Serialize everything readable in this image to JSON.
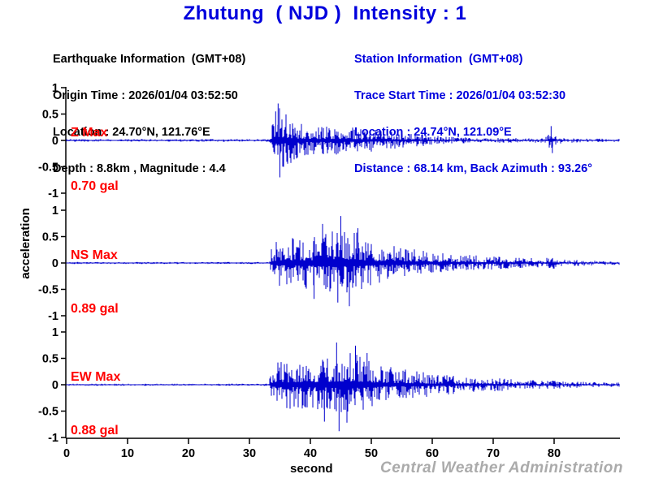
{
  "title": {
    "text": "Zhutung  ( NJD )  Intensity : 1"
  },
  "earthquake_info": {
    "heading": "Earthquake Information  (GMT+08)",
    "origin_time": "Origin Time : 2026/01/04 03:52:50",
    "location": "Location : 24.70°N, 121.76°E",
    "depth_magnitude": "Depth : 8.8km , Magnitude : 4.4"
  },
  "station_info": {
    "heading": "Station Information  (GMT+08)",
    "trace_start_time": "Trace Start Time : 2026/01/04 03:52:30",
    "location": "Location : 24.74°N, 121.09°E",
    "distance_azimuth": "Distance : 68.14 km, Back Azimuth : 93.26°"
  },
  "footer": {
    "watermark": "Central Weather Administration"
  },
  "colors": {
    "accent_blue": "#0000dd",
    "trace_blue": "#0000cd",
    "label_red": "#ff0000",
    "watermark_gray": "#ababab",
    "text_black": "#000000"
  },
  "chart_data": {
    "type": "line",
    "description": "Three-component strong-motion seismogram (acceleration vs time)",
    "xlabel": "second",
    "ylabel": "acceleration",
    "amplitude_unit": "gal",
    "x_axis": {
      "ticks": [
        0,
        10,
        20,
        30,
        40,
        50,
        60,
        70,
        80
      ],
      "range": [
        0,
        90.7
      ]
    },
    "y_axis": {
      "ticks": [
        1,
        0.5,
        0,
        -0.5,
        -1
      ],
      "range": [
        -1,
        1
      ]
    },
    "event_onset_s": 33.5,
    "traces": [
      {
        "id": "Z",
        "max_title": "Z Max",
        "max_value": "0.70 gal",
        "max_gal": 0.7,
        "envelope": [
          [
            0,
            0.025
          ],
          [
            33.2,
            0.025
          ],
          [
            33.6,
            0.3
          ],
          [
            34.2,
            0.62
          ],
          [
            35.2,
            0.62
          ],
          [
            36.5,
            0.45
          ],
          [
            38,
            0.34
          ],
          [
            40,
            0.3
          ],
          [
            42,
            0.26
          ],
          [
            45,
            0.27
          ],
          [
            47,
            0.24
          ],
          [
            50,
            0.22
          ],
          [
            53,
            0.17
          ],
          [
            56,
            0.14
          ],
          [
            59,
            0.11
          ],
          [
            62,
            0.08
          ],
          [
            65,
            0.06
          ],
          [
            69,
            0.05
          ],
          [
            73,
            0.045
          ],
          [
            78,
            0.04
          ],
          [
            79,
            0.09
          ],
          [
            79.5,
            0.26
          ],
          [
            80.3,
            0.07
          ],
          [
            82,
            0.045
          ],
          [
            86,
            0.035
          ],
          [
            90.7,
            0.03
          ]
        ],
        "peaks": [
          [
            34.7,
            0.7
          ],
          [
            35.0,
            -0.7
          ],
          [
            34.3,
            0.55
          ],
          [
            35.6,
            -0.5
          ],
          [
            79.5,
            0.27
          ],
          [
            79.7,
            -0.24
          ]
        ]
      },
      {
        "id": "NS",
        "max_title": "NS Max",
        "max_value": "0.89 gal",
        "max_gal": 0.89,
        "envelope": [
          [
            0,
            0.02
          ],
          [
            33.2,
            0.02
          ],
          [
            33.6,
            0.3
          ],
          [
            34.5,
            0.42
          ],
          [
            36,
            0.46
          ],
          [
            38,
            0.5
          ],
          [
            40,
            0.52
          ],
          [
            42,
            0.58
          ],
          [
            44,
            0.62
          ],
          [
            45,
            0.68
          ],
          [
            46,
            0.64
          ],
          [
            47.5,
            0.6
          ],
          [
            49,
            0.5
          ],
          [
            51,
            0.38
          ],
          [
            53,
            0.33
          ],
          [
            55,
            0.3
          ],
          [
            57,
            0.26
          ],
          [
            59,
            0.22
          ],
          [
            61,
            0.19
          ],
          [
            63,
            0.17
          ],
          [
            66,
            0.15
          ],
          [
            69,
            0.13
          ],
          [
            72,
            0.11
          ],
          [
            75,
            0.1
          ],
          [
            78,
            0.08
          ],
          [
            79.5,
            0.13
          ],
          [
            81,
            0.07
          ],
          [
            84,
            0.055
          ],
          [
            87,
            0.045
          ],
          [
            90.7,
            0.035
          ]
        ],
        "peaks": [
          [
            45.0,
            0.89
          ],
          [
            46.4,
            -0.82
          ],
          [
            42.0,
            0.74
          ],
          [
            44.5,
            -0.75
          ],
          [
            40.6,
            -0.68
          ],
          [
            47.8,
            0.66
          ]
        ]
      },
      {
        "id": "EW",
        "max_title": "EW Max",
        "max_value": "0.88 gal",
        "max_gal": 0.88,
        "envelope": [
          [
            0,
            0.02
          ],
          [
            33.2,
            0.02
          ],
          [
            33.6,
            0.32
          ],
          [
            34.5,
            0.42
          ],
          [
            36,
            0.44
          ],
          [
            38,
            0.48
          ],
          [
            40,
            0.46
          ],
          [
            42,
            0.52
          ],
          [
            43.5,
            0.58
          ],
          [
            45,
            0.62
          ],
          [
            46.5,
            0.6
          ],
          [
            48,
            0.56
          ],
          [
            49.5,
            0.48
          ],
          [
            51,
            0.4
          ],
          [
            53,
            0.34
          ],
          [
            55,
            0.3
          ],
          [
            57,
            0.26
          ],
          [
            59,
            0.23
          ],
          [
            61,
            0.2
          ],
          [
            63,
            0.18
          ],
          [
            65,
            0.16
          ],
          [
            68,
            0.14
          ],
          [
            71,
            0.12
          ],
          [
            74,
            0.1
          ],
          [
            77,
            0.09
          ],
          [
            80,
            0.075
          ],
          [
            83,
            0.06
          ],
          [
            86,
            0.05
          ],
          [
            90.7,
            0.04
          ]
        ],
        "peaks": [
          [
            44.7,
            -0.88
          ],
          [
            44.3,
            0.8
          ],
          [
            47.4,
            0.74
          ],
          [
            42.3,
            -0.7
          ],
          [
            46.0,
            -0.72
          ],
          [
            49.3,
            0.6
          ]
        ]
      }
    ]
  }
}
